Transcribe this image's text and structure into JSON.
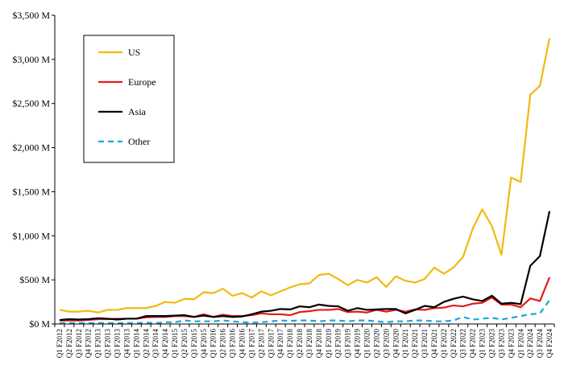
{
  "chart_data": {
    "type": "line",
    "title": "",
    "xlabel": "",
    "ylabel": "",
    "ylim": [
      0,
      3500
    ],
    "grid": false,
    "legend_position": "top-left",
    "y_ticks": [
      0,
      500,
      1000,
      1500,
      2000,
      2500,
      3000,
      3500
    ],
    "y_tick_labels": [
      "$0 M",
      "$500 M",
      "$1,000 M",
      "$1,500 M",
      "$2,000 M",
      "$2,500 M",
      "$3,000 M",
      "$3,500 M"
    ],
    "categories": [
      "Q1 F2012",
      "Q2 F2012",
      "Q3 F2012",
      "Q4 F2012",
      "Q1 F2013",
      "Q2 F2013",
      "Q3 F2013",
      "Q4 F2013",
      "Q1 F2014",
      "Q2 F2014",
      "Q3 F2014",
      "Q4 F2014",
      "Q1 F2015",
      "Q2 F2015",
      "Q3 F2015",
      "Q4 F2015",
      "Q1 F2016",
      "Q2 F2016",
      "Q3 F2016",
      "Q4 F2016",
      "Q1 F2017",
      "Q2 F2017",
      "Q3 F2017",
      "Q4 F2017",
      "Q1 F2018",
      "Q2 F2018",
      "Q3 F2018",
      "Q4 F2018",
      "Q1 F2019",
      "Q2 F2019",
      "Q3 F2019",
      "Q4 F2019",
      "Q1 F2020",
      "Q2 F2020",
      "Q3 F2020",
      "Q4 F2020",
      "Q1 F2021",
      "Q2 F2021",
      "Q3 F2021",
      "Q4 F2021",
      "Q1 F2022",
      "Q2 F2022",
      "Q3 F2022",
      "Q4 F2022",
      "Q1 F2023",
      "Q2 F2023",
      "Q3 F2023",
      "Q4 F2023",
      "Q1 F2024",
      "Q2 F2024",
      "Q3 F2024",
      "Q4 F2024"
    ],
    "series": [
      {
        "name": "US",
        "color": "#f2b90f",
        "dash": "solid",
        "values": [
          160,
          140,
          140,
          150,
          130,
          160,
          160,
          180,
          180,
          180,
          205,
          250,
          240,
          285,
          280,
          360,
          350,
          400,
          320,
          350,
          300,
          370,
          325,
          370,
          415,
          450,
          460,
          555,
          570,
          510,
          440,
          500,
          470,
          530,
          420,
          540,
          490,
          470,
          510,
          640,
          570,
          640,
          760,
          1080,
          1300,
          1110,
          785,
          1660,
          1610,
          2600,
          2700,
          3240
        ]
      },
      {
        "name": "Europe",
        "color": "#e31a1c",
        "dash": "solid",
        "values": [
          40,
          40,
          40,
          45,
          55,
          55,
          60,
          60,
          60,
          75,
          80,
          80,
          90,
          90,
          80,
          110,
          80,
          105,
          90,
          90,
          100,
          120,
          110,
          110,
          100,
          135,
          145,
          160,
          160,
          170,
          135,
          140,
          130,
          160,
          140,
          160,
          140,
          165,
          160,
          180,
          185,
          210,
          200,
          230,
          240,
          300,
          220,
          220,
          190,
          290,
          260,
          530
        ]
      },
      {
        "name": "Asia",
        "color": "#000000",
        "dash": "solid",
        "values": [
          45,
          55,
          50,
          55,
          65,
          60,
          50,
          60,
          60,
          90,
          90,
          90,
          95,
          100,
          80,
          95,
          80,
          90,
          80,
          85,
          110,
          140,
          150,
          170,
          165,
          200,
          190,
          220,
          205,
          200,
          150,
          180,
          160,
          165,
          170,
          170,
          120,
          160,
          205,
          190,
          250,
          285,
          310,
          280,
          260,
          320,
          230,
          240,
          225,
          660,
          770,
          1280
        ]
      },
      {
        "name": "Other",
        "color": "#1ca6dc",
        "dash": "dashed",
        "values": [
          10,
          10,
          10,
          10,
          10,
          10,
          10,
          10,
          10,
          15,
          10,
          20,
          20,
          40,
          30,
          30,
          30,
          40,
          30,
          20,
          15,
          20,
          30,
          40,
          35,
          40,
          40,
          30,
          40,
          40,
          30,
          40,
          40,
          30,
          20,
          30,
          30,
          40,
          40,
          30,
          30,
          40,
          80,
          50,
          60,
          70,
          50,
          70,
          90,
          110,
          120,
          270
        ]
      }
    ]
  }
}
